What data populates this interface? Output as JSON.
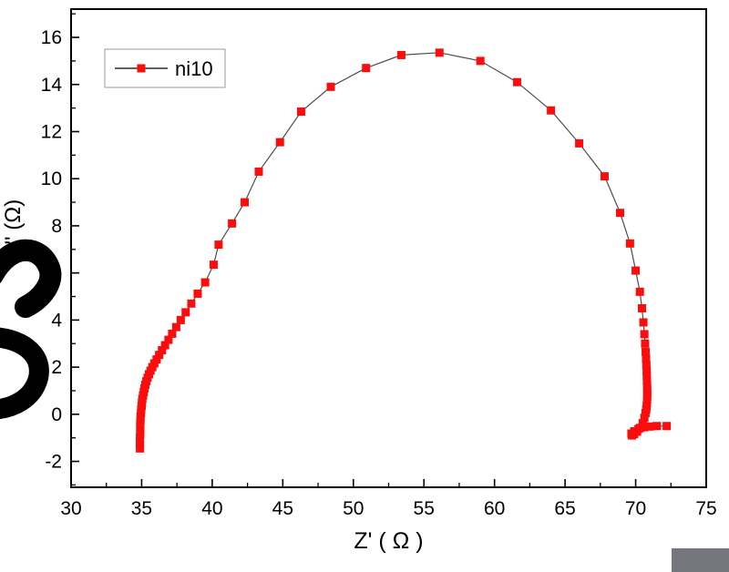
{
  "window": {
    "background": "#ffffff"
  },
  "legend": {
    "label": "ni10"
  },
  "colors": {
    "marker": "#fa0d0c",
    "series_line": "#4d4d4d",
    "frame": "#000000",
    "tick": "#000000",
    "legend_border": "#999999",
    "smudge": "#000000",
    "corner_box": "#74777b"
  },
  "chart_data": {
    "type": "scatter",
    "title": "",
    "xlabel": "Z' ( Ω )",
    "ylabel": "-Z'' (Ω)",
    "xlim": [
      30,
      75
    ],
    "ylim": [
      -3.1,
      17.2
    ],
    "x_major_ticks": [
      30,
      35,
      40,
      45,
      50,
      55,
      60,
      65,
      70,
      75
    ],
    "x_tick_labels": [
      "30",
      "35",
      "40",
      "45",
      "50",
      "55",
      "60",
      "65",
      "70",
      "75"
    ],
    "y_major_ticks": [
      -2,
      0,
      2,
      4,
      6,
      8,
      10,
      12,
      14,
      16
    ],
    "y_tick_labels": [
      "-2",
      "0",
      "2",
      "4",
      "6",
      "8",
      "10",
      "12",
      "14",
      "16"
    ],
    "x_minor_step": 2.5,
    "y_minor_step": 1,
    "grid": false,
    "legend_position": "top-left",
    "series": [
      {
        "name": "ni10",
        "marker": "square",
        "marker_color": "#fa0d0c",
        "line_color": "#4d4d4d",
        "points": [
          [
            34.88,
            -1.45
          ],
          [
            34.88,
            -1.3
          ],
          [
            34.88,
            -1.15
          ],
          [
            34.88,
            -1.0
          ],
          [
            34.9,
            -0.85
          ],
          [
            34.9,
            -0.7
          ],
          [
            34.9,
            -0.55
          ],
          [
            34.9,
            -0.4
          ],
          [
            34.92,
            -0.25
          ],
          [
            34.92,
            -0.1
          ],
          [
            34.95,
            0.05
          ],
          [
            34.97,
            0.2
          ],
          [
            35.0,
            0.35
          ],
          [
            35.02,
            0.5
          ],
          [
            35.05,
            0.65
          ],
          [
            35.1,
            0.8
          ],
          [
            35.15,
            0.95
          ],
          [
            35.2,
            1.1
          ],
          [
            35.26,
            1.25
          ],
          [
            35.33,
            1.4
          ],
          [
            35.42,
            1.55
          ],
          [
            35.52,
            1.7
          ],
          [
            35.63,
            1.85
          ],
          [
            35.76,
            2.0
          ],
          [
            35.9,
            2.16
          ],
          [
            36.06,
            2.33
          ],
          [
            36.24,
            2.52
          ],
          [
            36.44,
            2.72
          ],
          [
            36.66,
            2.93
          ],
          [
            36.9,
            3.16
          ],
          [
            37.16,
            3.42
          ],
          [
            37.45,
            3.7
          ],
          [
            37.77,
            4.0
          ],
          [
            38.12,
            4.33
          ],
          [
            38.52,
            4.7
          ],
          [
            38.97,
            5.12
          ],
          [
            39.5,
            5.6
          ],
          [
            40.1,
            6.35
          ],
          [
            40.45,
            7.2
          ],
          [
            41.4,
            8.1
          ],
          [
            42.3,
            9.0
          ],
          [
            43.3,
            10.3
          ],
          [
            44.8,
            11.55
          ],
          [
            46.3,
            12.85
          ],
          [
            48.4,
            13.9
          ],
          [
            50.9,
            14.7
          ],
          [
            53.4,
            15.25
          ],
          [
            56.1,
            15.35
          ],
          [
            59.0,
            15.0
          ],
          [
            61.6,
            14.1
          ],
          [
            64.0,
            12.9
          ],
          [
            66.0,
            11.5
          ],
          [
            67.8,
            10.1
          ],
          [
            68.9,
            8.55
          ],
          [
            69.6,
            7.25
          ],
          [
            70.0,
            6.1
          ],
          [
            70.3,
            5.2
          ],
          [
            70.45,
            4.5
          ],
          [
            70.55,
            3.9
          ],
          [
            70.62,
            3.4
          ],
          [
            70.67,
            3.0
          ],
          [
            70.71,
            2.65
          ],
          [
            70.74,
            2.35
          ],
          [
            70.76,
            2.08
          ],
          [
            70.78,
            1.84
          ],
          [
            70.79,
            1.62
          ],
          [
            70.8,
            1.42
          ],
          [
            70.81,
            1.24
          ],
          [
            70.82,
            1.07
          ],
          [
            70.82,
            0.91
          ],
          [
            70.82,
            0.76
          ],
          [
            70.81,
            0.62
          ],
          [
            70.8,
            0.48
          ],
          [
            70.78,
            0.34
          ],
          [
            70.75,
            0.2
          ],
          [
            70.7,
            0.05
          ],
          [
            70.62,
            -0.15
          ],
          [
            70.5,
            -0.38
          ],
          [
            70.32,
            -0.58
          ],
          [
            70.1,
            -0.74
          ],
          [
            69.9,
            -0.84
          ],
          [
            69.74,
            -0.9
          ],
          [
            69.7,
            -0.82
          ],
          [
            69.9,
            -0.72
          ],
          [
            70.2,
            -0.62
          ],
          [
            70.6,
            -0.55
          ],
          [
            71.0,
            -0.52
          ],
          [
            71.5,
            -0.5
          ],
          [
            72.2,
            -0.5
          ]
        ]
      }
    ]
  }
}
